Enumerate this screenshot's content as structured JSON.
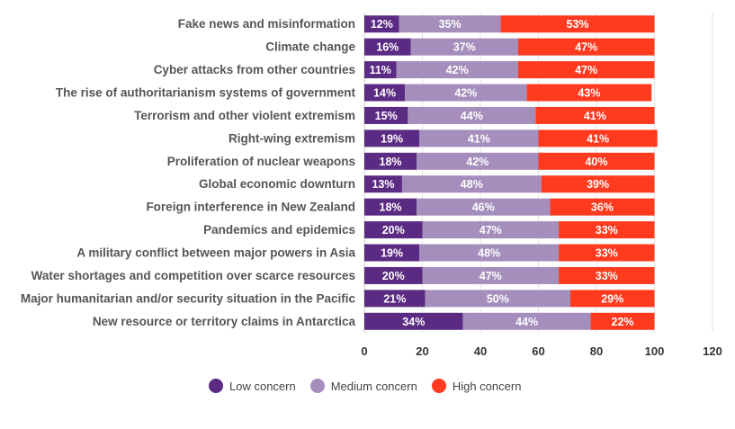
{
  "colors": {
    "low": "#5b2a82",
    "medium": "#a58dbc",
    "high": "#ff3a1f",
    "grid": "#e3e3e3",
    "axis": "#cccccc"
  },
  "legend": {
    "low": "Low concern",
    "medium": "Medium concern",
    "high": "High concern"
  },
  "chart_data": {
    "type": "bar",
    "orientation": "horizontal",
    "stacked": true,
    "categories": [
      "Fake news and misinformation",
      "Climate change",
      "Cyber attacks from other countries",
      "The rise of authoritarianism systems of government",
      "Terrorism and other violent extremism",
      "Right-wing extremism",
      "Proliferation of nuclear weapons",
      "Global economic downturn",
      "Foreign interference in New Zealand",
      "Pandemics and epidemics",
      "A military conflict between major powers in Asia",
      "Water shortages and competition over scarce resources",
      "Major humanitarian and/or security situation in the Pacific",
      "New resource or territory claims in Antarctica"
    ],
    "series": [
      {
        "name": "Low concern",
        "key": "low",
        "values": [
          12,
          16,
          11,
          14,
          15,
          19,
          18,
          13,
          18,
          20,
          19,
          20,
          21,
          34
        ]
      },
      {
        "name": "Medium concern",
        "key": "medium",
        "values": [
          35,
          37,
          42,
          42,
          44,
          41,
          42,
          48,
          46,
          47,
          48,
          47,
          50,
          44
        ]
      },
      {
        "name": "High concern",
        "key": "high",
        "values": [
          53,
          47,
          47,
          43,
          41,
          41,
          40,
          39,
          36,
          33,
          33,
          33,
          29,
          22
        ]
      }
    ],
    "xlim": [
      0,
      120
    ],
    "xticks": [
      "0",
      "20",
      "40",
      "60",
      "80",
      "100",
      "120"
    ],
    "grid": true,
    "legend_position": "bottom"
  }
}
